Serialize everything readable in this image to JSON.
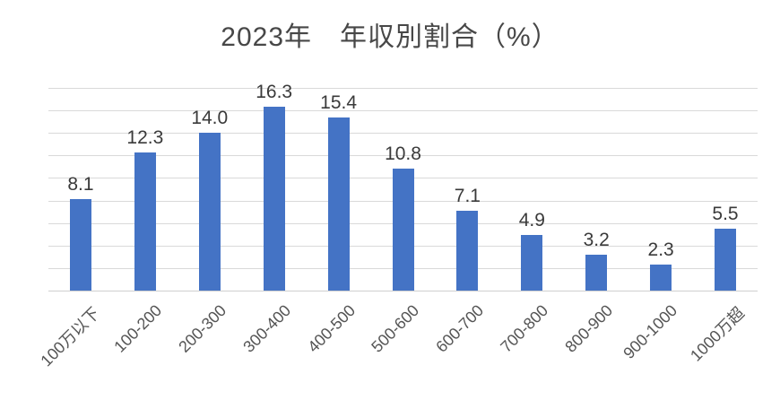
{
  "chart_data": {
    "type": "bar",
    "title": "2023年　年収別割合（%）",
    "categories": [
      "100万以下",
      "100-200",
      "200-300",
      "300-400",
      "400-500",
      "500-600",
      "600-700",
      "700-800",
      "800-900",
      "900-1000",
      "1000万超"
    ],
    "values": [
      8.1,
      12.3,
      14.0,
      16.3,
      15.4,
      10.8,
      7.1,
      4.9,
      3.2,
      2.3,
      5.5
    ],
    "value_labels": [
      "8.1",
      "12.3",
      "14.0",
      "16.3",
      "15.4",
      "10.8",
      "7.1",
      "4.9",
      "3.2",
      "2.3",
      "5.5"
    ],
    "xlabel": "",
    "ylabel": "",
    "ylim": [
      0,
      18
    ],
    "gridline_interval": 2,
    "grid": true,
    "legend": "none",
    "data_labels": "outside-end",
    "bar_color": "#4473c5",
    "gridline_color": "#d9d9d9",
    "title_color": "#474747",
    "label_color": "#3a3a3a",
    "axis_label_color": "#555555"
  }
}
